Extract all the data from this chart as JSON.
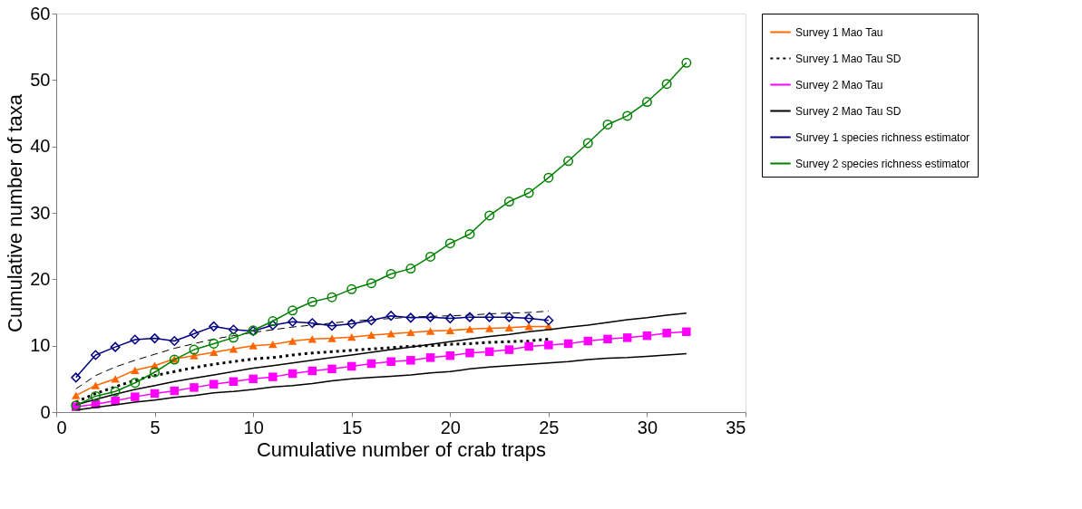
{
  "chart_data": {
    "type": "line",
    "xlabel": "Cumulative number of crab traps",
    "ylabel": "Cumulative number of taxa",
    "xlim": [
      0,
      35
    ],
    "ylim": [
      0,
      60
    ],
    "xticks": [
      0,
      5,
      10,
      15,
      20,
      25,
      30,
      35
    ],
    "yticks": [
      0,
      10,
      20,
      30,
      40,
      50,
      60
    ],
    "grid": false,
    "legend": "right",
    "series": [
      {
        "name": "Survey 1 Mao Tau",
        "color": "#ff6600",
        "marker": "triangle",
        "line_style": "solid",
        "x": [
          1,
          2,
          3,
          4,
          5,
          6,
          7,
          8,
          9,
          10,
          11,
          12,
          13,
          14,
          15,
          16,
          17,
          18,
          19,
          20,
          21,
          22,
          23,
          24,
          25
        ],
        "values": [
          2.5,
          4,
          5,
          6.3,
          7,
          8,
          8.5,
          9,
          9.5,
          10,
          10.2,
          10.7,
          11,
          11.1,
          11.3,
          11.6,
          11.8,
          12,
          12.2,
          12.3,
          12.5,
          12.6,
          12.7,
          12.9,
          12.9
        ]
      },
      {
        "name": "Survey 1 Mao Tau SD",
        "color": "#000000",
        "marker": "none",
        "line_style": "dotted",
        "x": [
          1,
          2,
          3,
          4,
          5,
          6,
          7,
          8,
          9,
          10,
          11,
          12,
          13,
          14,
          15,
          16,
          17,
          18,
          19,
          20,
          21,
          22,
          23,
          24,
          25
        ],
        "values": [
          1.5,
          2.8,
          3.8,
          4.8,
          5.5,
          6.1,
          6.7,
          7.2,
          7.6,
          8.0,
          8.2,
          8.6,
          8.9,
          9.1,
          9.3,
          9.5,
          9.7,
          9.9,
          10.0,
          10.2,
          10.3,
          10.5,
          10.6,
          10.7,
          11.0
        ]
      },
      {
        "color": "#000000",
        "marker": "none",
        "line_style": "dashed",
        "x": [
          1,
          2,
          3,
          4,
          5,
          6,
          7,
          8,
          9,
          10,
          11,
          12,
          13,
          14,
          15,
          16,
          17,
          18,
          19,
          20,
          21,
          22,
          23,
          24,
          25
        ],
        "values": [
          3.5,
          5.5,
          6.8,
          7.8,
          8.7,
          9.6,
          10.3,
          11,
          11.5,
          12,
          12.4,
          12.8,
          13.1,
          13.4,
          13.7,
          13.9,
          14.1,
          14.3,
          14.4,
          14.5,
          14.6,
          14.8,
          14.9,
          15,
          15.2
        ]
      },
      {
        "name": "Survey 2 Mao Tau",
        "color": "#ff00ff",
        "marker": "square",
        "line_style": "solid",
        "x": [
          1,
          2,
          3,
          4,
          5,
          6,
          7,
          8,
          9,
          10,
          11,
          12,
          13,
          14,
          15,
          16,
          17,
          18,
          19,
          20,
          21,
          22,
          23,
          24,
          25,
          26,
          27,
          28,
          29,
          30,
          31,
          32
        ],
        "values": [
          0.8,
          1.2,
          1.7,
          2.3,
          2.8,
          3.2,
          3.7,
          4.2,
          4.6,
          5.0,
          5.3,
          5.8,
          6.2,
          6.5,
          6.9,
          7.3,
          7.6,
          7.8,
          8.2,
          8.5,
          8.9,
          9.1,
          9.4,
          9.9,
          10.1,
          10.3,
          10.7,
          11.0,
          11.2,
          11.5,
          11.9,
          12.1
        ]
      },
      {
        "name": "Survey 2 Mao Tau SD",
        "color": "#000000",
        "marker": "none",
        "line_style": "solid",
        "x": [
          1,
          2,
          3,
          4,
          5,
          6,
          7,
          8,
          9,
          10,
          11,
          12,
          13,
          14,
          15,
          16,
          17,
          18,
          19,
          20,
          21,
          22,
          23,
          24,
          25,
          26,
          27,
          28,
          29,
          30,
          31,
          32
        ],
        "values": [
          0.3,
          0.7,
          1.1,
          1.5,
          1.8,
          2.2,
          2.5,
          2.9,
          3.1,
          3.4,
          3.8,
          4.0,
          4.3,
          4.7,
          5.0,
          5.2,
          5.4,
          5.6,
          5.9,
          6.1,
          6.5,
          6.8,
          7.0,
          7.2,
          7.4,
          7.6,
          7.9,
          8.1,
          8.2,
          8.4,
          8.6,
          8.8
        ]
      },
      {
        "color": "#000000",
        "marker": "none",
        "line_style": "solid",
        "x": [
          1,
          2,
          3,
          4,
          5,
          6,
          7,
          8,
          9,
          10,
          11,
          12,
          13,
          14,
          15,
          16,
          17,
          18,
          19,
          20,
          21,
          22,
          23,
          24,
          25,
          26,
          27,
          28,
          29,
          30,
          31,
          32
        ],
        "values": [
          1.1,
          1.9,
          2.7,
          3.4,
          4.0,
          4.6,
          5.1,
          5.6,
          6.1,
          6.6,
          7.0,
          7.4,
          7.8,
          8.2,
          8.6,
          9.0,
          9.4,
          9.8,
          10.2,
          10.6,
          11.0,
          11.4,
          11.7,
          12.1,
          12.4,
          12.8,
          13.1,
          13.5,
          13.9,
          14.2,
          14.6,
          14.9
        ]
      },
      {
        "name": "Survey 1 species richness estimator",
        "color": "#000080",
        "marker": "diamond",
        "line_style": "solid",
        "x": [
          1,
          2,
          3,
          4,
          5,
          6,
          7,
          8,
          9,
          10,
          11,
          12,
          13,
          14,
          15,
          16,
          17,
          18,
          19,
          20,
          21,
          22,
          23,
          24,
          25
        ],
        "values": [
          5.2,
          8.6,
          9.8,
          10.9,
          11.1,
          10.7,
          11.8,
          12.9,
          12.4,
          12.2,
          13.1,
          13.6,
          13.4,
          13,
          13.3,
          13.8,
          14.5,
          14.2,
          14.3,
          14.1,
          14.3,
          14.3,
          14.3,
          14.1,
          13.8
        ]
      },
      {
        "name": "Survey 2 species richness estimator",
        "color": "#008000",
        "marker": "circle",
        "line_style": "solid",
        "x": [
          1,
          2,
          3,
          4,
          5,
          6,
          7,
          8,
          9,
          10,
          11,
          12,
          13,
          14,
          15,
          16,
          17,
          18,
          19,
          20,
          21,
          22,
          23,
          24,
          25,
          26,
          27,
          28,
          29,
          30,
          31,
          32
        ],
        "values": [
          1.0,
          2.4,
          3.1,
          4.4,
          6.0,
          7.9,
          9.4,
          10.3,
          11.2,
          12.3,
          13.7,
          15.3,
          16.6,
          17.3,
          18.5,
          19.4,
          20.8,
          21.6,
          23.4,
          25.4,
          26.8,
          29.6,
          31.7,
          33.0,
          35.3,
          37.8,
          40.5,
          43.3,
          44.6,
          46.7,
          49.4,
          52.6
        ]
      }
    ]
  }
}
